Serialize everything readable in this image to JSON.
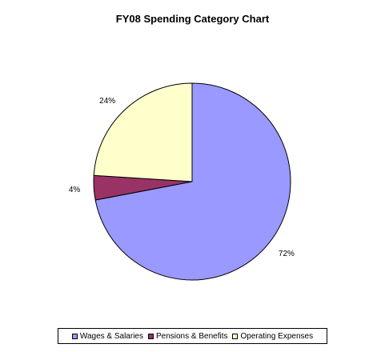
{
  "chart_data": {
    "type": "pie",
    "title": "FY08 Spending Category Chart",
    "categories": [
      "Wages & Salaries",
      "Pensions & Benefits",
      "Operating Expenses"
    ],
    "values": [
      72,
      4,
      24
    ],
    "data_labels": [
      "72%",
      "4%",
      "24%"
    ],
    "colors": [
      "#9999FF",
      "#993366",
      "#FFFFCC"
    ],
    "start_angle_deg": 0,
    "direction": "clockwise",
    "legend_position": "bottom"
  }
}
